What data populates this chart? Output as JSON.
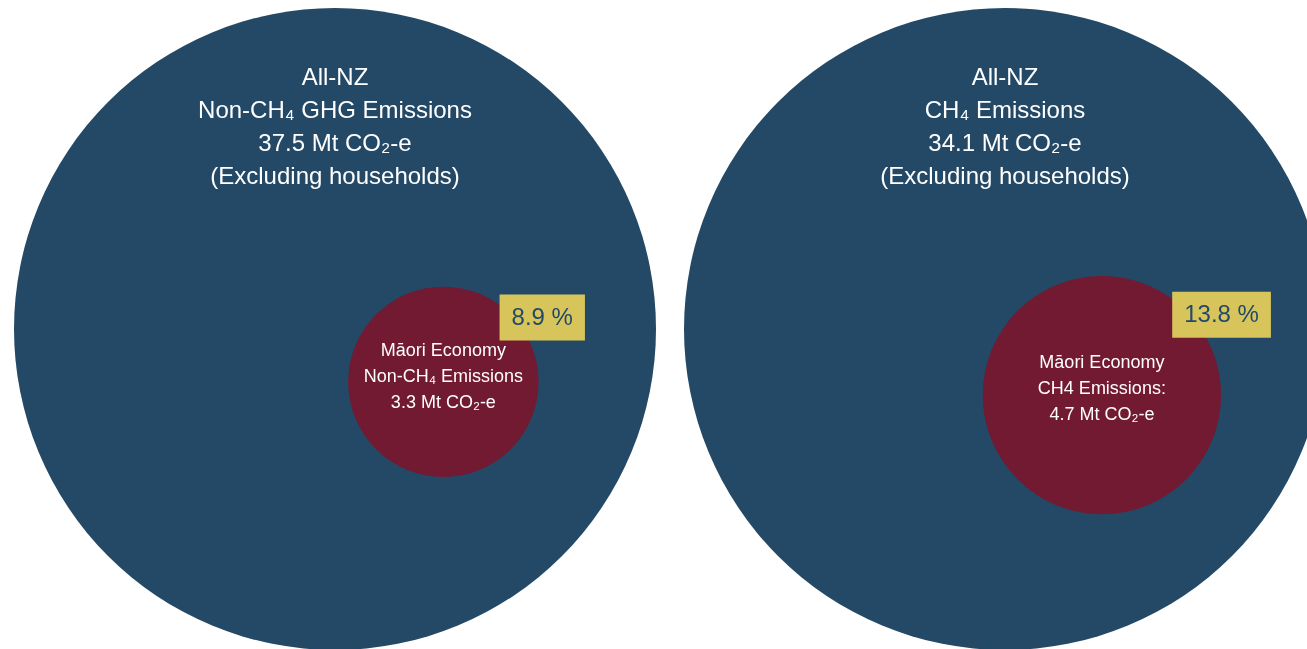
{
  "chart_data": [
    {
      "type": "other",
      "categories": [
        "All-NZ",
        "Māori Economy"
      ],
      "values": [
        37.5,
        3.3
      ],
      "value_labels": [
        "Non-CH₄ GHG Emissions\n37.5 Mt CO₂-e\n(Excluding households)",
        "Non-CH₄ Emissions\n3.3 Mt CO₂-e"
      ],
      "colors": [
        "#234966",
        "#721a32"
      ],
      "annotations": [
        "8.9 %"
      ]
    },
    {
      "type": "other",
      "categories": [
        "All-NZ",
        "Māori Economy"
      ],
      "values": [
        34.1,
        4.7
      ],
      "value_labels": [
        "CH₄ Emissions\n34.1 Mt CO₂-e\n(Excluding households)",
        "CH4 Emissions:\n4.7 Mt CO₂-e"
      ],
      "colors": [
        "#234966",
        "#721a32"
      ],
      "annotations": [
        "13.8 %"
      ]
    }
  ]
}
